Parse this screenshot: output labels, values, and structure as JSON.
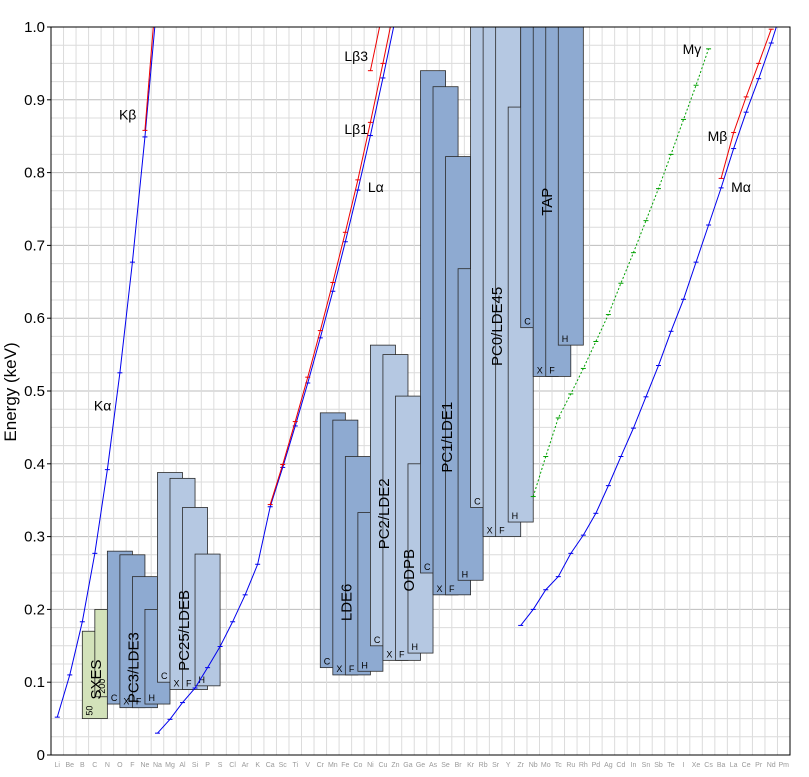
{
  "chart_data": {
    "type": "crystal-range chart",
    "ylabel": "Energy (keV)",
    "ylim": [
      0,
      1.0
    ],
    "yticks": [
      "0",
      "0.1",
      "0.2",
      "0.3",
      "0.4",
      "0.5",
      "0.6",
      "0.7",
      "0.8",
      "0.9",
      "1.0"
    ],
    "elements": [
      "Li",
      "Be",
      "B",
      "C",
      "N",
      "O",
      "F",
      "Ne",
      "Na",
      "Mg",
      "Al",
      "Si",
      "P",
      "S",
      "Cl",
      "Ar",
      "K",
      "Ca",
      "Sc",
      "Ti",
      "V",
      "Cr",
      "Mn",
      "Fe",
      "Co",
      "Ni",
      "Cu",
      "Zn",
      "Ga",
      "Ge",
      "As",
      "Se",
      "Br",
      "Kr",
      "Rb",
      "Sr",
      "Y",
      "Zr",
      "Nb",
      "Mo",
      "Tc",
      "Ru",
      "Rh",
      "Pd",
      "Ag",
      "Cd",
      "In",
      "Sn",
      "Sb",
      "Te",
      "I",
      "Xe",
      "Cs",
      "Ba",
      "La",
      "Ce",
      "Pr",
      "Nd",
      "Pm"
    ],
    "emission_lines": [
      {
        "label": "Kα",
        "color": "#0000ee",
        "start_element": "Li",
        "energies": [
          0.052,
          0.11,
          0.183,
          0.277,
          0.392,
          0.525,
          0.677,
          0.849,
          1.041
        ]
      },
      {
        "label": "Kβ",
        "color": "#ee0000",
        "start_element": "Ne",
        "energies": [
          0.858,
          1.071
        ]
      },
      {
        "label": "Lα",
        "color": "#0000ee",
        "start_element": "Na",
        "energies": [
          0.03,
          0.049,
          0.072,
          0.092,
          0.12,
          0.149,
          0.183,
          0.22,
          0.262,
          0.341,
          0.395,
          0.452,
          0.511,
          0.573,
          0.637,
          0.705,
          0.776,
          0.851,
          0.93,
          1.012
        ]
      },
      {
        "label": "Lβ1",
        "color": "#ee0000",
        "start_element": "Ca",
        "energies": [
          0.344,
          0.399,
          0.458,
          0.519,
          0.583,
          0.649,
          0.718,
          0.79,
          0.869,
          0.95,
          1.034
        ]
      },
      {
        "label": "Lβ3",
        "color": "#ee0000",
        "start_element": "Ni",
        "energies": [
          0.94,
          1.022
        ]
      },
      {
        "label": "Mα",
        "color": "#0000ee",
        "start_element": "Zr",
        "energies": [
          0.178,
          0.2,
          0.227,
          0.245,
          0.277,
          0.302,
          0.332,
          0.37,
          0.41,
          0.449,
          0.492,
          0.535,
          0.582,
          0.626,
          0.677,
          0.728,
          0.779,
          0.833,
          0.883,
          0.929,
          0.978,
          1.032
        ]
      },
      {
        "label": "Mβ",
        "color": "#ee0000",
        "start_element": "Ba",
        "energies": [
          0.792,
          0.855,
          0.904,
          0.95,
          0.997
        ]
      },
      {
        "label": "Mγ",
        "color": "#00a000",
        "start_element": "Nb",
        "energies": [
          0.355,
          0.41,
          0.463,
          0.496,
          0.531,
          0.568,
          0.605,
          0.648,
          0.69,
          0.734,
          0.778,
          0.825,
          0.873,
          0.92,
          0.97
        ]
      }
    ],
    "crystal_groups": [
      {
        "label": "SXES",
        "color": "#d3e2ba",
        "bars": [
          {
            "tag": "50",
            "from": "B",
            "min": 0.05,
            "max": 0.17
          },
          {
            "tag": "200",
            "from": "C",
            "min": 0.08,
            "max": 0.2
          }
        ]
      },
      {
        "label": "PC3/LDE3",
        "color": "#8eaad1",
        "bars": [
          {
            "tag": "C",
            "from": "N",
            "min": 0.07,
            "max": 0.28
          },
          {
            "tag": "X",
            "from": "O",
            "min": 0.065,
            "max": 0.275
          },
          {
            "tag": "F",
            "from": "F",
            "min": 0.065,
            "max": 0.245
          },
          {
            "tag": "H",
            "from": "Ne",
            "min": 0.07,
            "max": 0.2
          }
        ]
      },
      {
        "label": "PC25/LDEB",
        "color": "#b5c8e2",
        "bars": [
          {
            "tag": "C",
            "from": "Na",
            "min": 0.1,
            "max": 0.388
          },
          {
            "tag": "X",
            "from": "Mg",
            "min": 0.09,
            "max": 0.38
          },
          {
            "tag": "F",
            "from": "Al",
            "min": 0.09,
            "max": 0.34
          },
          {
            "tag": "H",
            "from": "Si",
            "min": 0.095,
            "max": 0.276
          }
        ]
      },
      {
        "label": "LDE6",
        "color": "#8eaad1",
        "bars": [
          {
            "tag": "C",
            "from": "Cr",
            "min": 0.12,
            "max": 0.47
          },
          {
            "tag": "X",
            "from": "Mn",
            "min": 0.11,
            "max": 0.46
          },
          {
            "tag": "F",
            "from": "Fe",
            "min": 0.11,
            "max": 0.41
          },
          {
            "tag": "H",
            "from": "Co",
            "min": 0.115,
            "max": 0.333
          }
        ]
      },
      {
        "label": "PC2/LDE2",
        "color": "#b5c8e2",
        "bars": [
          {
            "tag": "C",
            "from": "Ni",
            "min": 0.15,
            "max": 0.563
          },
          {
            "tag": "X",
            "from": "Cu",
            "min": 0.13,
            "max": 0.55
          }
        ]
      },
      {
        "label": "ODPB",
        "color": "#b5c8e2",
        "bars": [
          {
            "tag": "F",
            "from": "Zn",
            "min": 0.13,
            "max": 0.493
          },
          {
            "tag": "H",
            "from": "Ga",
            "min": 0.14,
            "max": 0.4
          }
        ]
      },
      {
        "label": "PC1/LDE1",
        "color": "#8eaad1",
        "bars": [
          {
            "tag": "C",
            "from": "Ge",
            "min": 0.25,
            "max": 0.94
          },
          {
            "tag": "X",
            "from": "As",
            "min": 0.22,
            "max": 0.918
          },
          {
            "tag": "F",
            "from": "Se",
            "min": 0.22,
            "max": 0.822
          },
          {
            "tag": "H",
            "from": "Br",
            "min": 0.24,
            "max": 0.668
          }
        ]
      },
      {
        "label": "PC0/LDE45",
        "color": "#b5c8e2",
        "bars": [
          {
            "tag": "C",
            "from": "Kr",
            "min": 0.34,
            "max": 1.0
          },
          {
            "tag": "X",
            "from": "Rb",
            "min": 0.3,
            "max": 1.0
          },
          {
            "tag": "F",
            "from": "Sr",
            "min": 0.3,
            "max": 1.0
          },
          {
            "tag": "H",
            "from": "Y",
            "min": 0.32,
            "max": 0.89
          }
        ]
      },
      {
        "label": "TAP",
        "color": "#8eaad1",
        "bars": [
          {
            "tag": "C",
            "from": "Zr",
            "min": 0.587,
            "max": 1.0
          },
          {
            "tag": "X",
            "from": "Nb",
            "min": 0.52,
            "max": 1.0
          },
          {
            "tag": "F",
            "from": "Mo",
            "min": 0.52,
            "max": 1.0
          },
          {
            "tag": "H",
            "from": "Tc",
            "min": 0.563,
            "max": 1.0
          }
        ]
      }
    ]
  }
}
